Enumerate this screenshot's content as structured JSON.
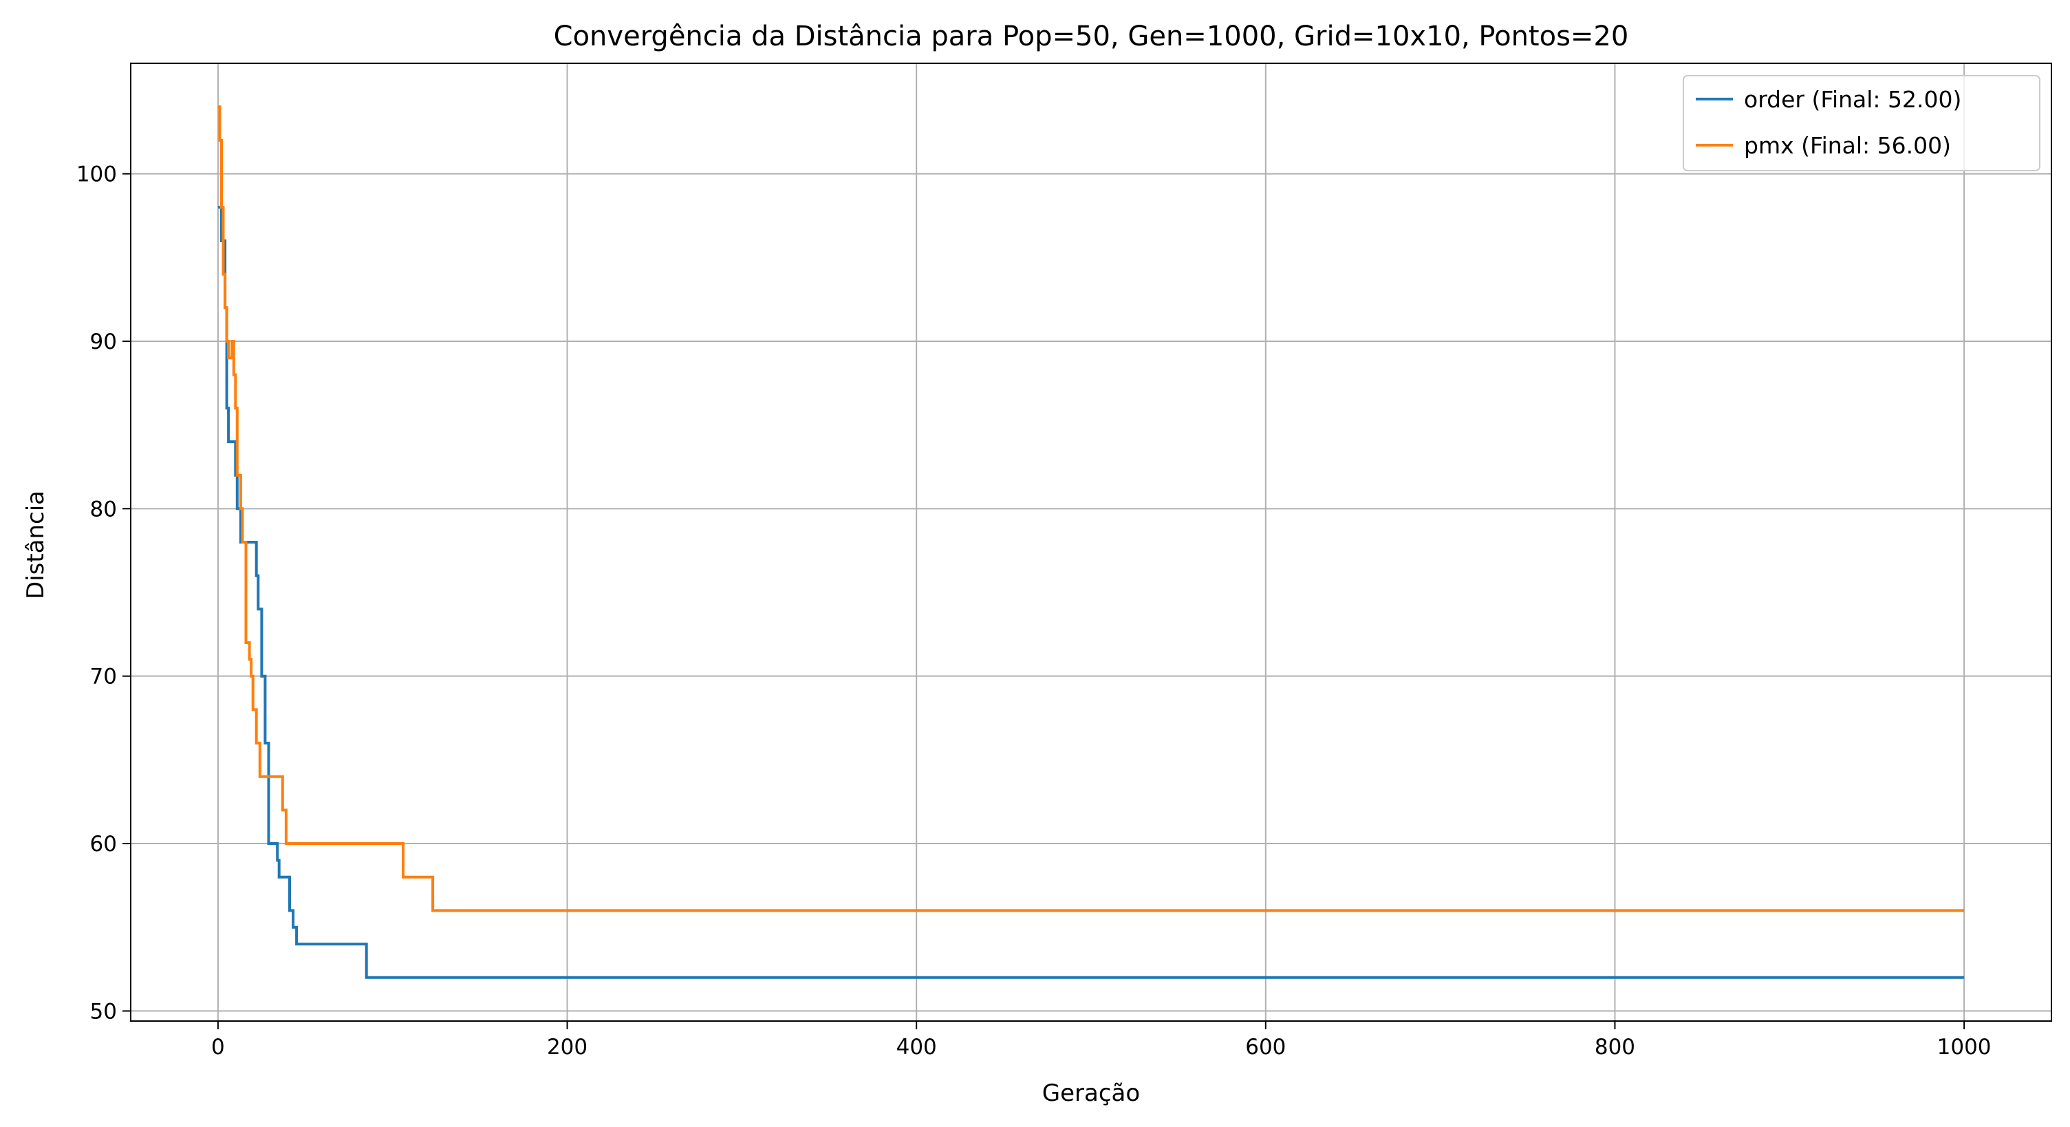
{
  "chart_data": {
    "type": "line",
    "title": "Convergência da Distância para Pop=50, Gen=1000, Grid=10x10, Pontos=20",
    "xlabel": "Geração",
    "ylabel": "Distância",
    "xlim": [
      -50,
      1050
    ],
    "ylim": [
      49.4,
      106.6
    ],
    "x_ticks": [
      0,
      200,
      400,
      600,
      800,
      1000
    ],
    "y_ticks": [
      50,
      60,
      70,
      80,
      90,
      100
    ],
    "grid": true,
    "legend_position": "top-right",
    "series": [
      {
        "name": "order (Final: 52.00)",
        "color": "#1f77b4",
        "x": [
          0,
          2,
          2,
          4,
          4,
          5,
          5,
          6,
          6,
          10,
          10,
          11,
          11,
          13,
          13,
          22,
          22,
          23,
          23,
          25,
          25,
          27,
          27,
          29,
          29,
          34,
          34,
          35,
          35,
          41,
          41,
          43,
          43,
          45,
          45,
          85,
          85,
          1000
        ],
        "y": [
          98,
          98,
          96,
          96,
          92,
          92,
          86,
          86,
          84,
          84,
          82,
          82,
          80,
          80,
          78,
          78,
          76,
          76,
          74,
          74,
          70,
          70,
          66,
          66,
          60,
          60,
          59,
          59,
          58,
          58,
          56,
          56,
          55,
          55,
          54,
          54,
          52,
          52
        ]
      },
      {
        "name": "pmx (Final: 56.00)",
        "color": "#ff7f0e",
        "x": [
          0,
          1,
          1,
          2,
          2,
          3,
          3,
          4,
          4,
          5,
          5,
          6,
          6,
          8,
          8,
          9,
          9,
          10,
          10,
          11,
          11,
          13,
          13,
          14,
          14,
          16,
          16,
          18,
          18,
          19,
          19,
          20,
          20,
          22,
          22,
          24,
          24,
          29,
          29,
          30,
          30,
          37,
          37,
          39,
          39,
          106,
          106,
          123,
          123,
          1000
        ],
        "y": [
          104,
          104,
          102,
          102,
          98,
          98,
          94,
          94,
          92,
          92,
          90,
          90,
          89,
          89,
          90,
          90,
          88,
          88,
          86,
          86,
          82,
          82,
          80,
          80,
          78,
          78,
          72,
          72,
          71,
          71,
          70,
          70,
          68,
          68,
          66,
          66,
          64,
          64,
          64,
          64,
          64,
          64,
          62,
          62,
          60,
          60,
          58,
          58,
          56,
          56
        ]
      }
    ]
  }
}
